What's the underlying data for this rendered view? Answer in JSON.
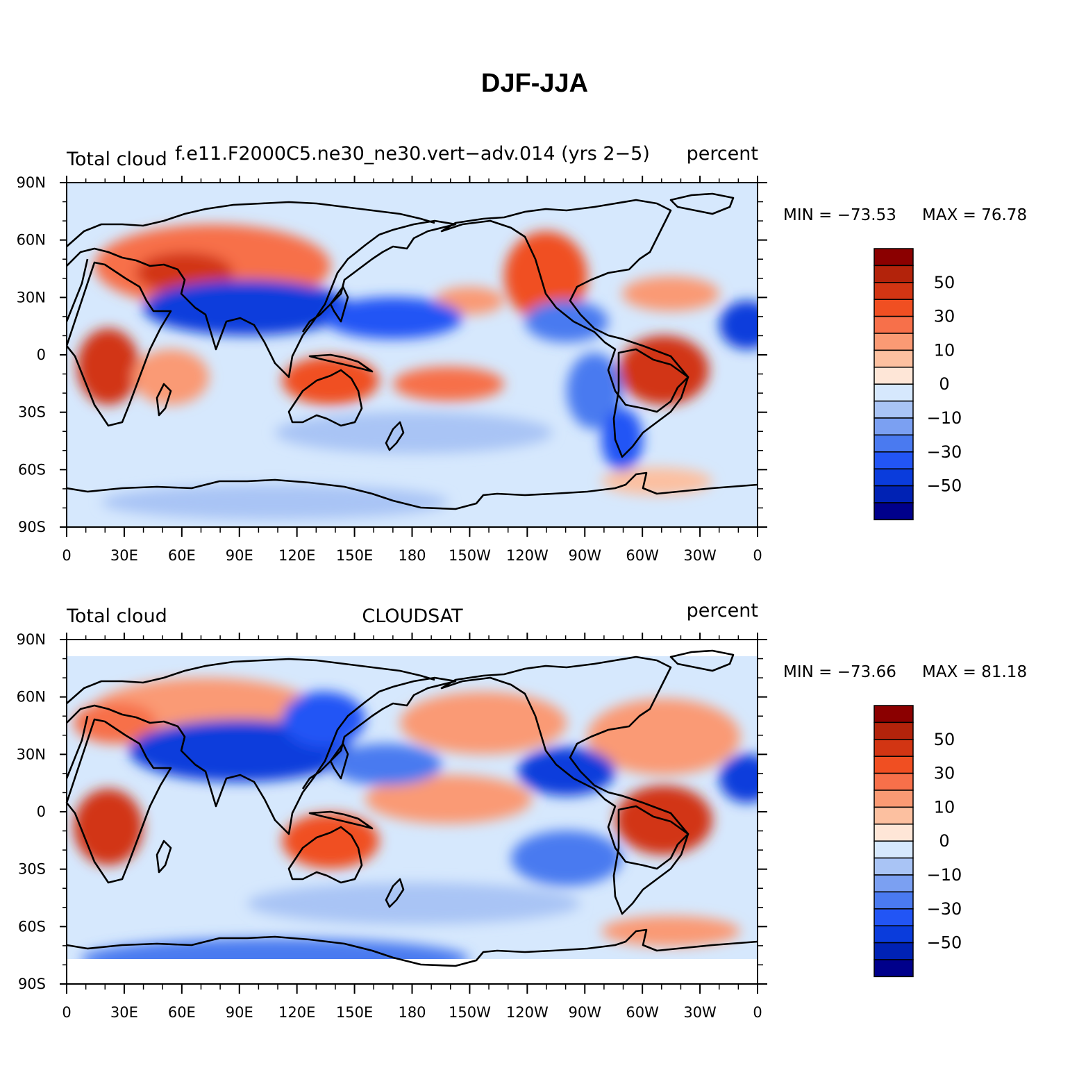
{
  "title": "DJF-JJA",
  "colors": {
    "levels": [
      "#00008b",
      "#0022b4",
      "#0a3cdc",
      "#2255f5",
      "#4a7af0",
      "#7ba0f2",
      "#a9c4f5",
      "#d6e8fd",
      "#fee6d7",
      "#fcc0a0",
      "#fa9a74",
      "#f7704a",
      "#f04f22",
      "#d23513",
      "#b3230b",
      "#8b0000"
    ]
  },
  "colorbar_labels": [
    "50",
    "30",
    "10",
    "0",
    "−10",
    "−30",
    "−50"
  ],
  "axis": {
    "lat_ticks": [
      "90N",
      "60N",
      "30N",
      "0",
      "30S",
      "60S",
      "90S"
    ],
    "lon_ticks": [
      "0",
      "30E",
      "60E",
      "90E",
      "120E",
      "150E",
      "180",
      "150W",
      "120W",
      "90W",
      "60W",
      "30W",
      "0"
    ]
  },
  "panels": [
    {
      "left_label": "Total cloud",
      "center_label": "f.e11.F2000C5.ne30_ne30.vert−adv.014 (yrs 2−5)",
      "right_label": "percent",
      "min_label": "MIN = −73.53",
      "max_label": "MAX =   76.78"
    },
    {
      "left_label": "Total cloud",
      "center_label": "CLOUDSAT",
      "right_label": "percent",
      "min_label": "MIN = −73.66",
      "max_label": "MAX =   81.18"
    }
  ]
}
